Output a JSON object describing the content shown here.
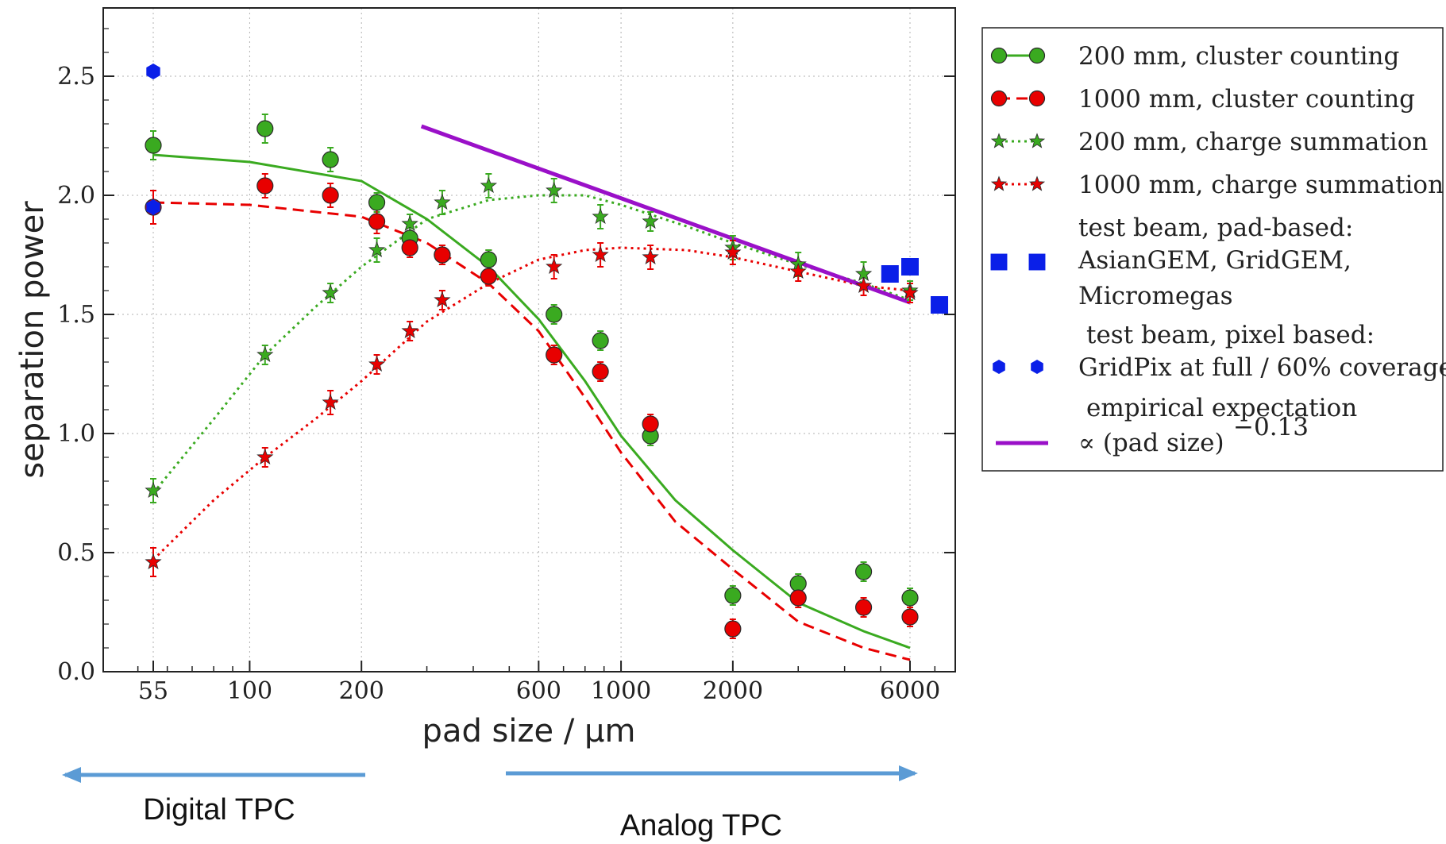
{
  "chart_data": {
    "type": "scatter",
    "title": "",
    "xlabel": "pad size / μm",
    "ylabel": "separation power",
    "x_scale": "log",
    "xlim": [
      40,
      8000
    ],
    "ylim": [
      0,
      2.8
    ],
    "grid": true,
    "x_ticks": [
      55,
      100,
      200,
      600,
      1000,
      2000,
      6000
    ],
    "x_tick_labels": [
      "55",
      "100",
      "200",
      "600",
      "1000",
      "2000",
      "6000"
    ],
    "y_ticks": [
      0.0,
      0.5,
      1.0,
      1.5,
      2.0,
      2.5
    ],
    "y_tick_labels": [
      "0.0",
      "0.5",
      "1.0",
      "1.5",
      "2.0",
      "2.5"
    ],
    "legend_position": "outside-right",
    "series": [
      {
        "name": "200 mm, cluster counting",
        "color": "#3aaa20",
        "marker": "circle",
        "points": [
          [
            55,
            2.21,
            0.06
          ],
          [
            110,
            2.28,
            0.06
          ],
          [
            165,
            2.15,
            0.05
          ],
          [
            220,
            1.97,
            0.04
          ],
          [
            270,
            1.82,
            0.05
          ],
          [
            330,
            1.75,
            0.04
          ],
          [
            440,
            1.73,
            0.04
          ],
          [
            660,
            1.5,
            0.04
          ],
          [
            880,
            1.39,
            0.04
          ],
          [
            1200,
            0.99,
            0.04
          ],
          [
            2000,
            0.32,
            0.04
          ],
          [
            3000,
            0.37,
            0.04
          ],
          [
            4500,
            0.42,
            0.04
          ],
          [
            6000,
            0.31,
            0.04
          ]
        ],
        "fit_line": {
          "style": "solid",
          "points": [
            [
              55,
              2.17
            ],
            [
              100,
              2.14
            ],
            [
              200,
              2.06
            ],
            [
              300,
              1.9
            ],
            [
              440,
              1.7
            ],
            [
              600,
              1.48
            ],
            [
              800,
              1.22
            ],
            [
              1000,
              0.99
            ],
            [
              1400,
              0.72
            ],
            [
              2000,
              0.51
            ],
            [
              3000,
              0.29
            ],
            [
              4500,
              0.17
            ],
            [
              6000,
              0.1
            ]
          ]
        }
      },
      {
        "name": "1000 mm, cluster counting",
        "color": "#e80000",
        "marker": "circle",
        "points": [
          [
            55,
            1.95,
            0.07
          ],
          [
            110,
            2.04,
            0.05
          ],
          [
            165,
            2.0,
            0.05
          ],
          [
            220,
            1.89,
            0.05
          ],
          [
            270,
            1.78,
            0.04
          ],
          [
            330,
            1.75,
            0.04
          ],
          [
            440,
            1.66,
            0.04
          ],
          [
            660,
            1.33,
            0.04
          ],
          [
            880,
            1.26,
            0.04
          ],
          [
            1200,
            1.04,
            0.04
          ],
          [
            2000,
            0.18,
            0.04
          ],
          [
            3000,
            0.31,
            0.04
          ],
          [
            4500,
            0.27,
            0.04
          ],
          [
            6000,
            0.23,
            0.04
          ]
        ],
        "fit_line": {
          "style": "dashed",
          "points": [
            [
              55,
              1.97
            ],
            [
              100,
              1.96
            ],
            [
              200,
              1.91
            ],
            [
              300,
              1.8
            ],
            [
              440,
              1.63
            ],
            [
              600,
              1.43
            ],
            [
              800,
              1.15
            ],
            [
              1000,
              0.92
            ],
            [
              1400,
              0.63
            ],
            [
              2000,
              0.43
            ],
            [
              3000,
              0.21
            ],
            [
              4500,
              0.1
            ],
            [
              6000,
              0.05
            ]
          ]
        }
      },
      {
        "name": "200 mm, charge summation",
        "color": "#3aaa20",
        "marker": "star",
        "points": [
          [
            55,
            0.76,
            0.05
          ],
          [
            110,
            1.33,
            0.04
          ],
          [
            165,
            1.59,
            0.04
          ],
          [
            220,
            1.77,
            0.05
          ],
          [
            270,
            1.88,
            0.04
          ],
          [
            330,
            1.97,
            0.05
          ],
          [
            440,
            2.04,
            0.05
          ],
          [
            660,
            2.02,
            0.05
          ],
          [
            880,
            1.91,
            0.05
          ],
          [
            1200,
            1.89,
            0.04
          ],
          [
            2000,
            1.78,
            0.05
          ],
          [
            3000,
            1.71,
            0.05
          ],
          [
            4500,
            1.67,
            0.05
          ],
          [
            6000,
            1.6,
            0.04
          ]
        ],
        "fit_line": {
          "style": "dotted",
          "points": [
            [
              55,
              0.75
            ],
            [
              80,
              1.06
            ],
            [
              110,
              1.33
            ],
            [
              150,
              1.53
            ],
            [
              200,
              1.7
            ],
            [
              300,
              1.9
            ],
            [
              440,
              1.98
            ],
            [
              600,
              2.0
            ],
            [
              800,
              2.0
            ],
            [
              1000,
              1.96
            ],
            [
              1500,
              1.87
            ],
            [
              2000,
              1.8
            ],
            [
              3000,
              1.71
            ],
            [
              4500,
              1.63
            ],
            [
              6000,
              1.56
            ]
          ]
        }
      },
      {
        "name": "1000 mm, charge summation",
        "color": "#e80000",
        "marker": "star",
        "points": [
          [
            55,
            0.46,
            0.06
          ],
          [
            110,
            0.9,
            0.04
          ],
          [
            165,
            1.13,
            0.05
          ],
          [
            220,
            1.29,
            0.04
          ],
          [
            270,
            1.43,
            0.04
          ],
          [
            330,
            1.56,
            0.04
          ],
          [
            440,
            1.73,
            0.04
          ],
          [
            660,
            1.7,
            0.05
          ],
          [
            880,
            1.75,
            0.05
          ],
          [
            1200,
            1.74,
            0.05
          ],
          [
            2000,
            1.76,
            0.05
          ],
          [
            3000,
            1.68,
            0.04
          ],
          [
            4500,
            1.62,
            0.04
          ],
          [
            6000,
            1.59,
            0.04
          ]
        ],
        "fit_line": {
          "style": "dotted",
          "points": [
            [
              55,
              0.47
            ],
            [
              80,
              0.72
            ],
            [
              110,
              0.9
            ],
            [
              150,
              1.06
            ],
            [
              200,
              1.22
            ],
            [
              300,
              1.47
            ],
            [
              440,
              1.63
            ],
            [
              600,
              1.73
            ],
            [
              800,
              1.77
            ],
            [
              1000,
              1.78
            ],
            [
              1500,
              1.77
            ],
            [
              2000,
              1.74
            ],
            [
              3000,
              1.68
            ],
            [
              4500,
              1.62
            ],
            [
              6000,
              1.6
            ]
          ]
        }
      },
      {
        "name": "AsianGEM, GridGEM, Micromegas",
        "color": "#0a1fe8",
        "marker": "square",
        "points": [
          [
            5300,
            1.67
          ],
          [
            6000,
            1.7
          ],
          [
            7200,
            1.54
          ]
        ]
      },
      {
        "name": "GridPix at full / 60% coverage",
        "color": "#0a1fe8",
        "marker": "hexagon",
        "points": [
          [
            55,
            2.52
          ],
          [
            55,
            1.95
          ]
        ]
      },
      {
        "name": "empirical expectation ∝ (pad size)^−0.13",
        "color": "#9a10c8",
        "marker": "line",
        "line": [
          [
            290,
            2.29
          ],
          [
            6000,
            1.55
          ]
        ]
      }
    ],
    "legend": [
      {
        "text": "200 mm, cluster counting",
        "symbol": "circle-solid",
        "color": "#3aaa20"
      },
      {
        "text": "1000 mm, cluster counting",
        "symbol": "circle-dashed",
        "color": "#e80000"
      },
      {
        "text": "200 mm, charge summation",
        "symbol": "star-dotted",
        "color": "#3aaa20"
      },
      {
        "text": "1000 mm, charge summation",
        "symbol": "star-dotted",
        "color": "#e80000"
      },
      {
        "header": "test beam, pad-based:",
        "lines": [
          "AsianGEM, GridGEM,",
          "Micromegas"
        ],
        "symbol": "square",
        "color": "#0a1fe8"
      },
      {
        "header": "test beam, pixel based:",
        "lines": [
          "GridPix at full / 60% coverage"
        ],
        "symbol": "hexagon",
        "color": "#0a1fe8"
      },
      {
        "header": "empirical expectation",
        "lines": [
          "∝ (pad size)"
        ],
        "superscript": "−0.13",
        "symbol": "line",
        "color": "#9a10c8"
      }
    ],
    "annotations": [
      {
        "text": "Digital TPC",
        "arrow_direction": "left",
        "x_from": 220,
        "x_to": 40
      },
      {
        "text": "Analog TPC",
        "arrow_direction": "right",
        "x_from": 440,
        "x_to": 6000
      }
    ],
    "arrow_color": "#5b9bd5"
  }
}
